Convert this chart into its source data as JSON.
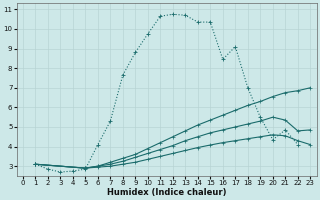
{
  "xlabel": "Humidex (Indice chaleur)",
  "bg_color": "#cde8e8",
  "grid_color": "#b8d4d4",
  "line_color": "#1a6b6b",
  "xlim": [
    -0.5,
    23.5
  ],
  "ylim": [
    2.5,
    11.3
  ],
  "xticks": [
    0,
    1,
    2,
    3,
    4,
    5,
    6,
    7,
    8,
    9,
    10,
    11,
    12,
    13,
    14,
    15,
    16,
    17,
    18,
    19,
    20,
    21,
    22,
    23
  ],
  "yticks": [
    3,
    4,
    5,
    6,
    7,
    8,
    9,
    10,
    11
  ],
  "line1_x": [
    1,
    2,
    3,
    4,
    5,
    6,
    7,
    8,
    9,
    10,
    11,
    12,
    13,
    14,
    15,
    16,
    17,
    18,
    19,
    20,
    21,
    22
  ],
  "line1_y": [
    3.1,
    2.85,
    2.7,
    2.75,
    2.85,
    4.1,
    5.3,
    7.65,
    8.8,
    9.75,
    10.65,
    10.75,
    10.7,
    10.35,
    10.35,
    8.45,
    9.1,
    7.0,
    5.5,
    4.35,
    4.85,
    4.1
  ],
  "line2_x": [
    1,
    5,
    6,
    7,
    8,
    9,
    10,
    11,
    12,
    13,
    14,
    15,
    16,
    17,
    18,
    19,
    20,
    21,
    22,
    23
  ],
  "line2_y": [
    3.1,
    2.9,
    3.0,
    3.2,
    3.4,
    3.6,
    3.9,
    4.2,
    4.5,
    4.8,
    5.1,
    5.35,
    5.6,
    5.85,
    6.1,
    6.3,
    6.55,
    6.75,
    6.85,
    7.0
  ],
  "line3_x": [
    1,
    5,
    6,
    7,
    8,
    9,
    10,
    11,
    12,
    13,
    14,
    15,
    16,
    17,
    18,
    19,
    20,
    21,
    22,
    23
  ],
  "line3_y": [
    3.1,
    2.9,
    3.0,
    3.1,
    3.25,
    3.45,
    3.65,
    3.85,
    4.05,
    4.3,
    4.5,
    4.7,
    4.85,
    5.0,
    5.15,
    5.3,
    5.5,
    5.35,
    4.8,
    4.85
  ],
  "line4_x": [
    1,
    5,
    6,
    7,
    8,
    9,
    10,
    11,
    12,
    13,
    14,
    15,
    16,
    17,
    18,
    19,
    20,
    21,
    22,
    23
  ],
  "line4_y": [
    3.1,
    2.9,
    2.95,
    3.0,
    3.1,
    3.2,
    3.35,
    3.5,
    3.65,
    3.8,
    3.95,
    4.08,
    4.2,
    4.3,
    4.4,
    4.5,
    4.6,
    4.55,
    4.3,
    4.1
  ],
  "markersize": 2.5
}
